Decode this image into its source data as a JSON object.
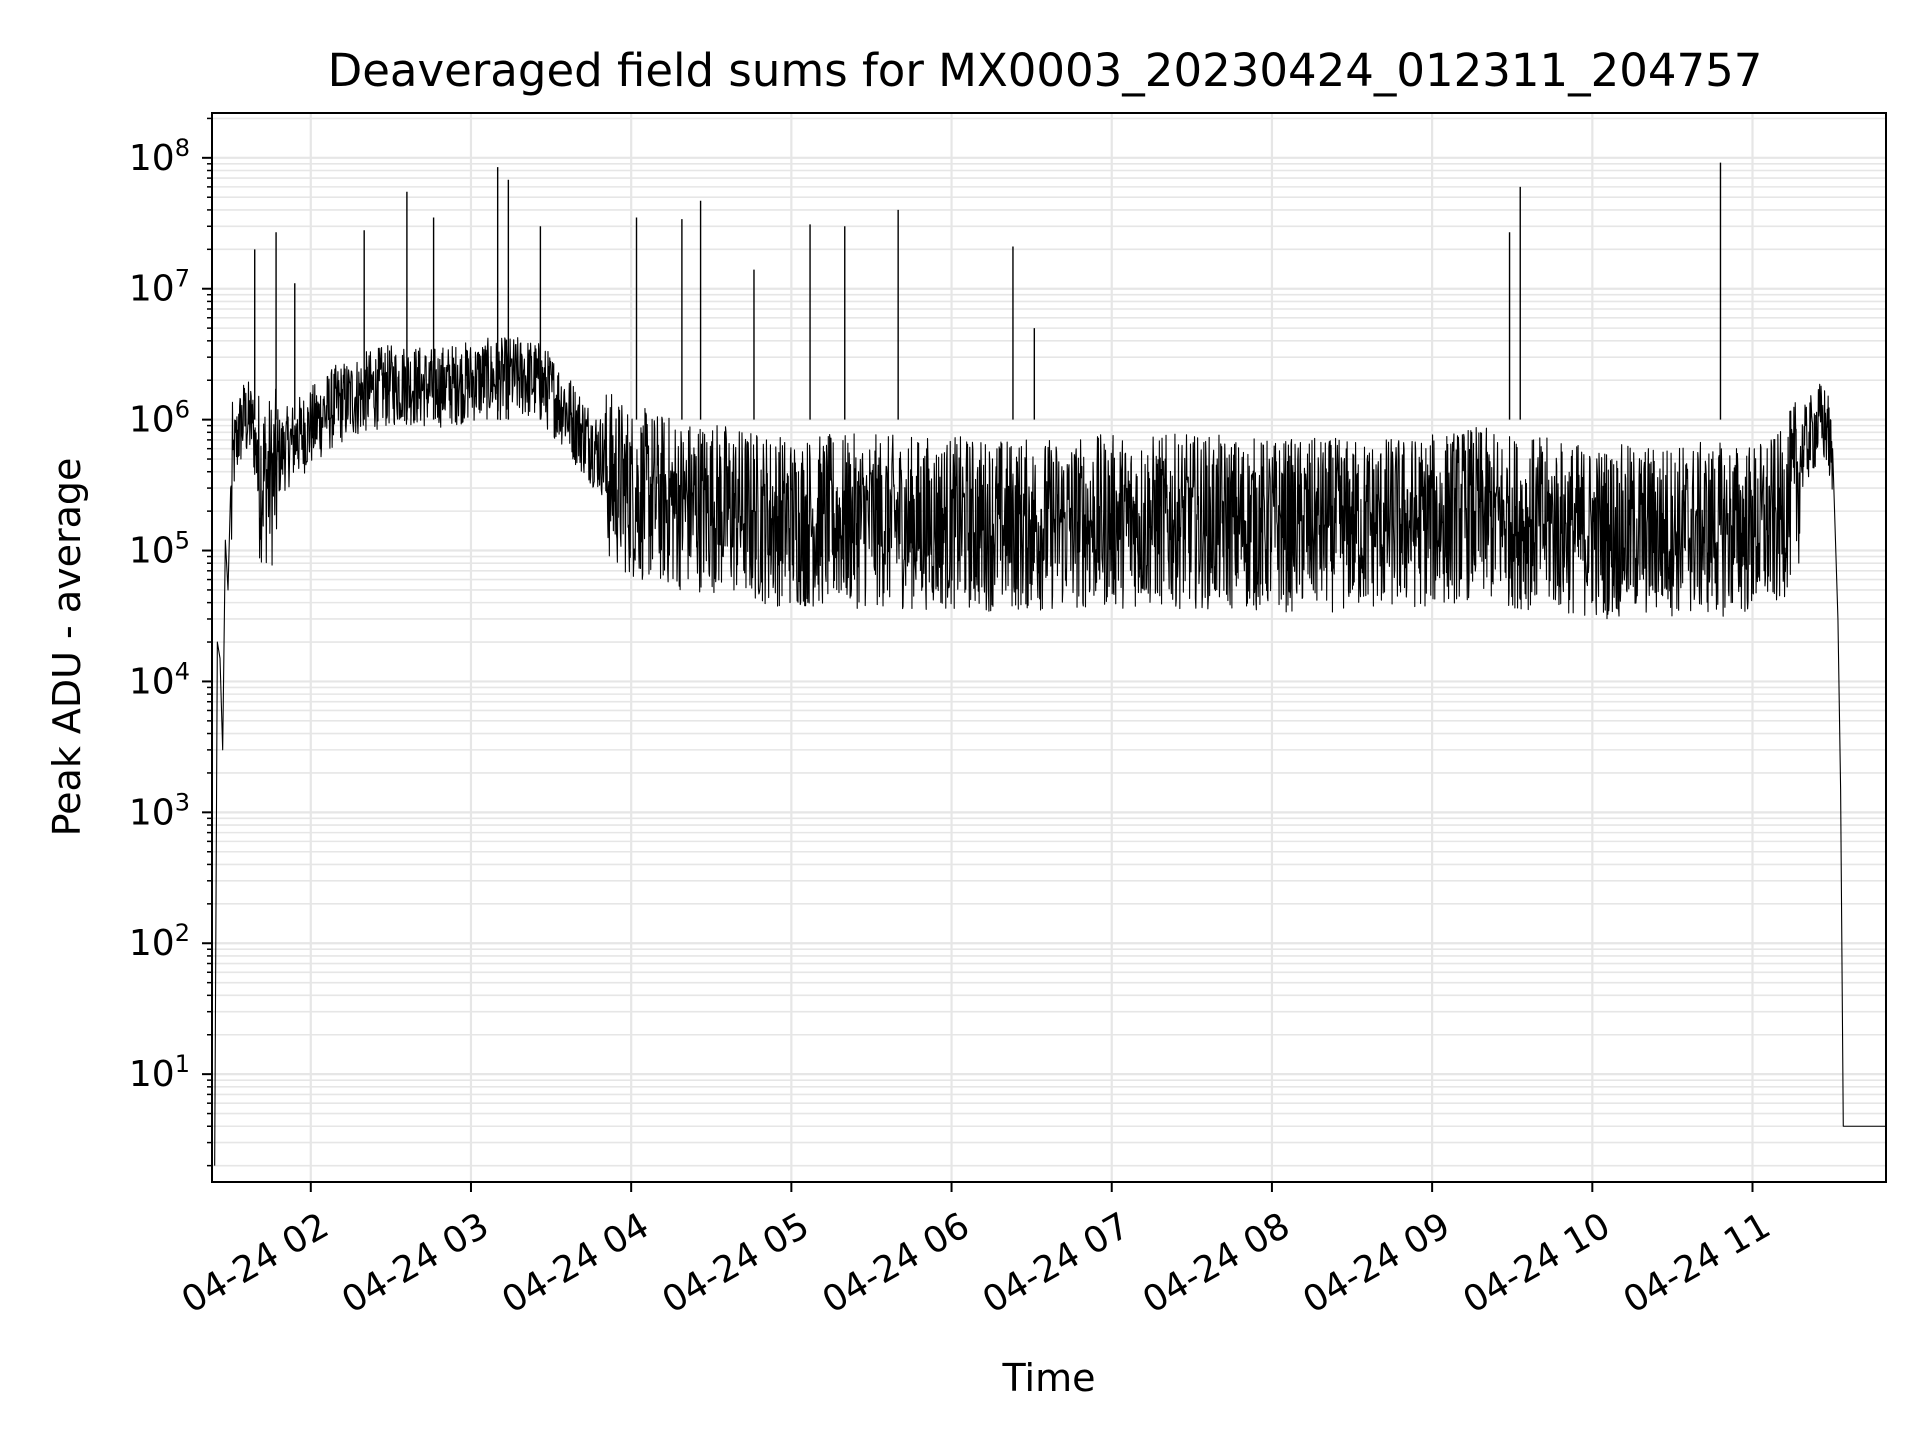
{
  "chart_data": {
    "type": "line",
    "title": "Deaveraged field sums for MX0003_20230424_012311_204757",
    "xlabel": "Time",
    "ylabel": "Peak ADU - average",
    "yscale": "log",
    "ylim": [
      1.5,
      220000000.0
    ],
    "xlim": [
      "2023-04-24T01:23",
      "2023-04-24T11:50"
    ],
    "x_ticks": [
      {
        "t": "2023-04-24T02:00",
        "label": "04-24 02"
      },
      {
        "t": "2023-04-24T03:00",
        "label": "04-24 03"
      },
      {
        "t": "2023-04-24T04:00",
        "label": "04-24 04"
      },
      {
        "t": "2023-04-24T05:00",
        "label": "04-24 05"
      },
      {
        "t": "2023-04-24T06:00",
        "label": "04-24 06"
      },
      {
        "t": "2023-04-24T07:00",
        "label": "04-24 07"
      },
      {
        "t": "2023-04-24T08:00",
        "label": "04-24 08"
      },
      {
        "t": "2023-04-24T09:00",
        "label": "04-24 09"
      },
      {
        "t": "2023-04-24T10:00",
        "label": "04-24 10"
      },
      {
        "t": "2023-04-24T11:00",
        "label": "04-24 11"
      }
    ],
    "y_ticks": [
      {
        "value": 10,
        "base": "10",
        "exp": "1"
      },
      {
        "value": 100,
        "base": "10",
        "exp": "2"
      },
      {
        "value": 1000,
        "base": "10",
        "exp": "3"
      },
      {
        "value": 10000,
        "base": "10",
        "exp": "4"
      },
      {
        "value": 100000,
        "base": "10",
        "exp": "5"
      },
      {
        "value": 1000000,
        "base": "10",
        "exp": "6"
      },
      {
        "value": 10000000,
        "base": "10",
        "exp": "7"
      },
      {
        "value": 100000000,
        "base": "10",
        "exp": "8"
      }
    ],
    "grid": true,
    "line_color": "#000000",
    "grid_color": "#e6e6e6",
    "series": [
      {
        "x": [
          "01:24",
          "01:25",
          "01:26",
          "01:27",
          "01:28",
          "01:29",
          "01:30",
          "01:31",
          "01:33",
          "01:35",
          "01:38",
          "01:40",
          "01:45",
          "01:50",
          "01:55",
          "02:00",
          "02:05",
          "02:10",
          "02:15",
          "02:20",
          "02:25",
          "02:30",
          "02:35",
          "02:40",
          "02:45",
          "02:50",
          "02:55",
          "03:00",
          "03:05",
          "03:10",
          "03:15",
          "03:20",
          "03:25",
          "03:30",
          "03:35",
          "03:40",
          "03:45",
          "03:50",
          "04:00",
          "04:10",
          "04:20",
          "04:30",
          "04:40",
          "04:50",
          "05:00",
          "05:30",
          "06:00",
          "06:30",
          "07:00",
          "07:30",
          "08:00",
          "08:30",
          "09:00",
          "09:15",
          "09:30",
          "09:45",
          "10:00",
          "10:15",
          "10:30",
          "10:45",
          "11:00",
          "11:10",
          "11:15",
          "11:20",
          "11:25",
          "11:28",
          "11:30",
          "11:32",
          "11:33",
          "11:34",
          "11:35",
          "11:50"
        ],
        "y": [
          2,
          20000,
          15000,
          3000,
          120000,
          50000,
          300000,
          700000,
          1100000,
          1400000,
          1300000,
          700000,
          600000,
          800000,
          1000000,
          1200000,
          1500000,
          1800000,
          2000000,
          2200000,
          2400000,
          2500000,
          2600000,
          2500000,
          2400000,
          2500000,
          2600000,
          2700000,
          2800000,
          2800000,
          2900000,
          2900000,
          2700000,
          2200000,
          1700000,
          1200000,
          900000,
          700000,
          500000,
          450000,
          400000,
          400000,
          350000,
          320000,
          300000,
          300000,
          290000,
          280000,
          300000,
          300000,
          280000,
          280000,
          300000,
          350000,
          300000,
          280000,
          250000,
          250000,
          260000,
          260000,
          260000,
          300000,
          500000,
          900000,
          1300000,
          1200000,
          600000,
          30000,
          1500,
          4,
          4,
          4
        ]
      }
    ],
    "spikes": [
      {
        "t": "01:39",
        "v": 20000000
      },
      {
        "t": "01:47",
        "v": 27000000
      },
      {
        "t": "01:54",
        "v": 11000000
      },
      {
        "t": "02:20",
        "v": 28000000
      },
      {
        "t": "02:36",
        "v": 55000000
      },
      {
        "t": "02:46",
        "v": 35000000
      },
      {
        "t": "03:10",
        "v": 85000000
      },
      {
        "t": "03:14",
        "v": 68000000
      },
      {
        "t": "03:26",
        "v": 30000000
      },
      {
        "t": "04:02",
        "v": 35000000
      },
      {
        "t": "04:19",
        "v": 34000000
      },
      {
        "t": "04:26",
        "v": 47000000
      },
      {
        "t": "04:46",
        "v": 14000000
      },
      {
        "t": "05:07",
        "v": 31000000
      },
      {
        "t": "05:20",
        "v": 30000000
      },
      {
        "t": "05:40",
        "v": 40000000
      },
      {
        "t": "06:23",
        "v": 21000000
      },
      {
        "t": "06:31",
        "v": 5000000
      },
      {
        "t": "09:29",
        "v": 27000000
      },
      {
        "t": "09:33",
        "v": 60000000
      },
      {
        "t": "10:48",
        "v": 92000000
      }
    ]
  }
}
